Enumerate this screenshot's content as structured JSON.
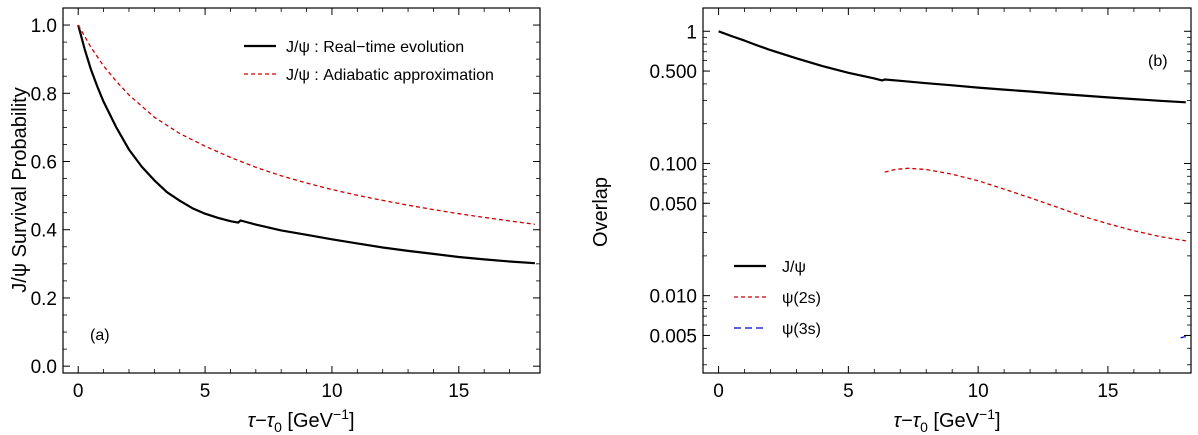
{
  "chart_data": [
    {
      "panel": "(a)",
      "type": "line",
      "xlabel_main": "τ−τ",
      "xlabel_sub": "0",
      "xlabel_unit": " [GeV",
      "xlabel_exp": "−1",
      "xlabel_end": "]",
      "ylabel": "J/ψ Survival Probability",
      "xlim": [
        -0.6,
        18.2
      ],
      "ylim": [
        -0.02,
        1.05
      ],
      "xticks": [
        0,
        5,
        10,
        15
      ],
      "xtick_labels": [
        "0",
        "5",
        "10",
        "15"
      ],
      "yticks": [
        0.0,
        0.2,
        0.4,
        0.6,
        0.8,
        1.0
      ],
      "ytick_labels": [
        "0.0",
        "0.2",
        "0.4",
        "0.6",
        "0.8",
        "1.0"
      ],
      "legend_position": "top-right",
      "series": [
        {
          "name": "J/ψ : Real−time evolution",
          "color": "#000000",
          "dash": "solid",
          "points": [
            [
              0,
              1.0
            ],
            [
              0.25,
              0.93
            ],
            [
              0.5,
              0.87
            ],
            [
              0.75,
              0.82
            ],
            [
              1.0,
              0.775
            ],
            [
              1.5,
              0.7
            ],
            [
              2.0,
              0.635
            ],
            [
              2.5,
              0.585
            ],
            [
              3.0,
              0.545
            ],
            [
              3.5,
              0.51
            ],
            [
              4.0,
              0.485
            ],
            [
              4.5,
              0.463
            ],
            [
              5.0,
              0.447
            ],
            [
              5.5,
              0.435
            ],
            [
              6.0,
              0.425
            ],
            [
              6.3,
              0.421
            ],
            [
              6.4,
              0.427
            ],
            [
              7.0,
              0.415
            ],
            [
              8.0,
              0.398
            ],
            [
              9.0,
              0.385
            ],
            [
              10.0,
              0.372
            ],
            [
              11.0,
              0.36
            ],
            [
              12.0,
              0.348
            ],
            [
              13.0,
              0.338
            ],
            [
              14.0,
              0.329
            ],
            [
              15.0,
              0.32
            ],
            [
              16.0,
              0.313
            ],
            [
              17.0,
              0.307
            ],
            [
              18.0,
              0.302
            ]
          ]
        },
        {
          "name": "J/ψ : Adiabatic approximation",
          "color": "#cc0000",
          "dash": "dashed",
          "points": [
            [
              0,
              1.0
            ],
            [
              0.5,
              0.935
            ],
            [
              1.0,
              0.88
            ],
            [
              1.5,
              0.835
            ],
            [
              2.0,
              0.795
            ],
            [
              3.0,
              0.73
            ],
            [
              4.0,
              0.682
            ],
            [
              5.0,
              0.645
            ],
            [
              6.0,
              0.612
            ],
            [
              7.0,
              0.583
            ],
            [
              8.0,
              0.558
            ],
            [
              9.0,
              0.537
            ],
            [
              10.0,
              0.518
            ],
            [
              11.0,
              0.501
            ],
            [
              12.0,
              0.486
            ],
            [
              13.0,
              0.472
            ],
            [
              14.0,
              0.459
            ],
            [
              15.0,
              0.447
            ],
            [
              16.0,
              0.436
            ],
            [
              17.0,
              0.426
            ],
            [
              18.0,
              0.416
            ]
          ]
        }
      ]
    },
    {
      "panel": "(b)",
      "type": "line",
      "yscale": "log",
      "xlabel_main": "τ−τ",
      "xlabel_sub": "0",
      "xlabel_unit": " [GeV",
      "xlabel_exp": "−1",
      "xlabel_end": "]",
      "ylabel": "Overlap",
      "xlim": [
        -0.6,
        18.2
      ],
      "ylim": [
        0.0026,
        1.5
      ],
      "xticks": [
        0,
        5,
        10,
        15
      ],
      "xtick_labels": [
        "0",
        "5",
        "10",
        "15"
      ],
      "yticks": [
        0.005,
        0.01,
        0.05,
        0.1,
        0.5,
        1
      ],
      "ytick_labels": [
        "0.005",
        "0.010",
        "0.050",
        "0.100",
        "0.500",
        "1"
      ],
      "legend_position": "bottom-left",
      "series": [
        {
          "name": "J/ψ",
          "color": "#000000",
          "dash": "solid",
          "points": [
            [
              0,
              1.0
            ],
            [
              0.5,
              0.92
            ],
            [
              1.0,
              0.85
            ],
            [
              1.5,
              0.78
            ],
            [
              2.0,
              0.72
            ],
            [
              3.0,
              0.625
            ],
            [
              4.0,
              0.545
            ],
            [
              5.0,
              0.485
            ],
            [
              6.0,
              0.44
            ],
            [
              6.3,
              0.425
            ],
            [
              6.4,
              0.432
            ],
            [
              7.0,
              0.422
            ],
            [
              8.0,
              0.405
            ],
            [
              9.0,
              0.39
            ],
            [
              10.0,
              0.375
            ],
            [
              11.0,
              0.362
            ],
            [
              12.0,
              0.35
            ],
            [
              13.0,
              0.338
            ],
            [
              14.0,
              0.327
            ],
            [
              15.0,
              0.316
            ],
            [
              16.0,
              0.307
            ],
            [
              17.0,
              0.298
            ],
            [
              18.0,
              0.29
            ]
          ]
        },
        {
          "name": "ψ(2s)",
          "color": "#cc0000",
          "dash": "dashed",
          "points": [
            [
              6.4,
              0.086
            ],
            [
              6.8,
              0.09
            ],
            [
              7.3,
              0.092
            ],
            [
              8.0,
              0.09
            ],
            [
              9.0,
              0.083
            ],
            [
              10.0,
              0.074
            ],
            [
              11.0,
              0.064
            ],
            [
              12.0,
              0.055
            ],
            [
              13.0,
              0.047
            ],
            [
              14.0,
              0.04
            ],
            [
              15.0,
              0.035
            ],
            [
              16.0,
              0.031
            ],
            [
              17.0,
              0.028
            ],
            [
              18.0,
              0.026
            ]
          ]
        },
        {
          "name": "ψ(3s)",
          "color": "#0000cc",
          "dash": "dashed",
          "points": [
            [
              17.8,
              0.0048
            ],
            [
              18.0,
              0.0049
            ]
          ]
        }
      ]
    }
  ]
}
